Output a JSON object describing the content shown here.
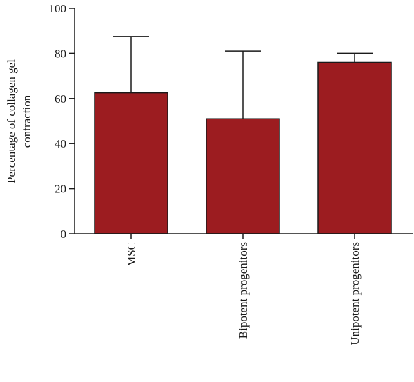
{
  "chart_data": {
    "type": "bar",
    "title": "",
    "xlabel": "",
    "ylabel_lines": [
      "Percentage of collagen gel",
      "contraction"
    ],
    "categories": [
      "MSC",
      "Bipotent progenitors",
      "Unipotent progenitors"
    ],
    "values": [
      62.5,
      51,
      76
    ],
    "error_upper": [
      87.5,
      81,
      80
    ],
    "ylim": [
      0,
      100
    ],
    "yticks": [
      0,
      20,
      40,
      60,
      80,
      100
    ],
    "grid": false,
    "legend": "none",
    "bar_color": "#9c1c20",
    "edge_color": "#1a1a1a"
  }
}
